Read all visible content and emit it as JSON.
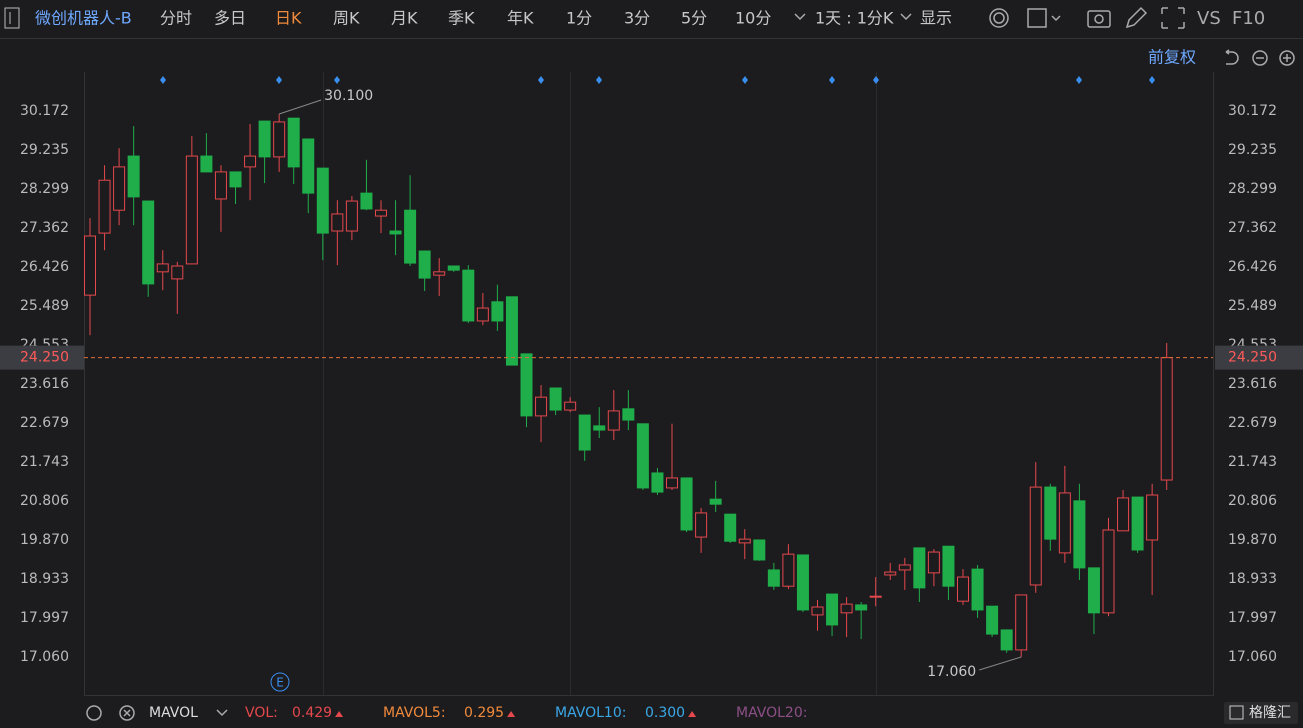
{
  "header": {
    "symbol": "微创机器人-B",
    "tabs": [
      "分时",
      "多日",
      "日K",
      "周K",
      "月K",
      "季K",
      "年K",
      "1分",
      "3分",
      "5分",
      "10分"
    ],
    "active_tab": "日K",
    "period": "1天 : 1分K",
    "display": "显示",
    "vs": "VS",
    "f10": "F10"
  },
  "chart_data": {
    "type": "candlestick",
    "adjust": "前复权",
    "open": [
      25.75,
      27.24,
      27.79,
      29.09,
      28.01,
      26.31,
      26.14,
      26.5,
      29.09,
      28.06,
      28.71,
      28.83,
      29.93,
      29.07,
      30.0,
      29.5,
      28.8,
      27.29,
      27.29,
      28.2,
      27.65,
      27.29,
      27.79,
      26.81,
      26.23,
      26.45,
      26.35,
      25.13,
      25.59,
      25.71,
      24.34,
      22.85,
      23.52,
      22.99,
      22.87,
      22.61,
      22.51,
      23.02,
      22.66,
      21.48,
      21.12,
      21.36,
      19.94,
      20.85,
      20.49,
      19.8,
      19.87,
      19.15,
      18.76,
      19.51,
      18.07,
      18.57,
      18.12,
      18.31,
      18.5,
      19.03,
      19.15,
      19.68,
      19.08,
      19.72,
      18.4,
      19.17,
      18.28,
      17.71,
      17.23,
      18.79,
      21.14,
      19.56,
      20.81,
      19.2,
      18.12,
      20.09,
      20.9,
      19.87,
      21.31
    ],
    "high": [
      27.6,
      28.87,
      29.28,
      29.81,
      28.01,
      26.83,
      26.55,
      29.57,
      29.64,
      28.87,
      28.71,
      29.86,
      29.93,
      30.1,
      30.0,
      29.5,
      28.8,
      28.03,
      28.13,
      29.0,
      28.03,
      28.03,
      28.63,
      26.81,
      26.64,
      26.45,
      26.47,
      25.8,
      26.0,
      25.71,
      24.34,
      23.59,
      23.52,
      23.3,
      22.87,
      23.06,
      23.47,
      23.47,
      22.66,
      21.6,
      22.66,
      21.36,
      20.64,
      21.29,
      20.49,
      20.13,
      19.87,
      19.32,
      19.77,
      19.51,
      18.43,
      18.57,
      18.5,
      18.38,
      18.98,
      19.32,
      19.44,
      19.68,
      19.65,
      19.72,
      19.17,
      19.27,
      18.28,
      17.71,
      18.55,
      21.74,
      21.22,
      21.65,
      21.22,
      19.2,
      20.4,
      21.07,
      20.9,
      21.22,
      24.6
    ],
    "low": [
      24.79,
      26.83,
      27.43,
      27.43,
      25.71,
      25.87,
      25.3,
      26.5,
      28.71,
      27.27,
      27.94,
      28.03,
      28.44,
      28.71,
      28.42,
      27.72,
      26.59,
      26.47,
      27.07,
      27.79,
      27.24,
      26.71,
      26.45,
      25.85,
      25.73,
      26.31,
      25.08,
      25.03,
      24.89,
      24.07,
      22.58,
      22.22,
      22.87,
      22.94,
      21.77,
      22.32,
      22.27,
      22.51,
      21.07,
      20.95,
      21.07,
      20.06,
      19.56,
      20.54,
      19.8,
      19.41,
      19.37,
      18.67,
      18.69,
      18.14,
      17.69,
      17.56,
      17.54,
      17.49,
      18.28,
      18.91,
      18.67,
      18.38,
      18.76,
      18.43,
      18.31,
      18.0,
      17.54,
      17.16,
      17.06,
      18.6,
      19.61,
      19.32,
      18.91,
      17.61,
      18.04,
      20.09,
      19.56,
      18.55,
      21.07
    ],
    "close": [
      27.17,
      28.51,
      28.83,
      28.11,
      26.02,
      26.5,
      26.45,
      29.09,
      28.71,
      28.71,
      28.35,
      29.09,
      29.07,
      29.91,
      28.83,
      28.2,
      27.24,
      27.7,
      28.01,
      27.82,
      27.79,
      27.22,
      26.52,
      26.16,
      26.31,
      26.35,
      25.13,
      25.44,
      25.13,
      24.07,
      22.85,
      23.3,
      22.99,
      23.18,
      22.03,
      22.51,
      22.97,
      22.75,
      21.12,
      21.02,
      21.36,
      20.11,
      20.52,
      20.73,
      19.84,
      19.89,
      19.39,
      18.76,
      19.53,
      18.19,
      18.26,
      17.83,
      18.33,
      18.19,
      18.52,
      19.1,
      19.27,
      18.72,
      19.58,
      18.76,
      18.98,
      18.19,
      17.61,
      17.23,
      18.55,
      21.14,
      19.89,
      21.0,
      19.2,
      18.12,
      20.11,
      20.88,
      19.63,
      20.95,
      24.25
    ],
    "up_color": "#e5484d",
    "down_color": "#1fae4a",
    "ylim": [
      16.147,
      31.109
    ],
    "yticks": [
      30.172,
      29.235,
      28.299,
      27.362,
      26.426,
      25.489,
      24.553,
      23.616,
      22.679,
      21.743,
      20.806,
      {
        "value": 19.87,
        "label": "19.870"
      },
      18.933,
      17.997,
      {
        "value": 17.06,
        "label": "17.060"
      }
    ],
    "grid": false,
    "last_price": {
      "value": 24.25,
      "label": "24.250"
    },
    "high_label": {
      "value": 30.1,
      "label": "30.100"
    },
    "low_label": {
      "value": 17.06,
      "label": "17.060"
    }
  },
  "indicator": {
    "name": "MAVOL",
    "items": [
      {
        "label": "VOL:",
        "value": "0.429",
        "color": "#e5484d"
      },
      {
        "label": "MAVOL5:",
        "value": "0.295",
        "color": "#f08a3c"
      },
      {
        "label": "MAVOL10:",
        "value": "0.300",
        "color": "#3aa8e8"
      },
      {
        "label": "MAVOL20:",
        "value": "",
        "color": "#8c4f86"
      }
    ]
  },
  "logo": "格隆汇"
}
